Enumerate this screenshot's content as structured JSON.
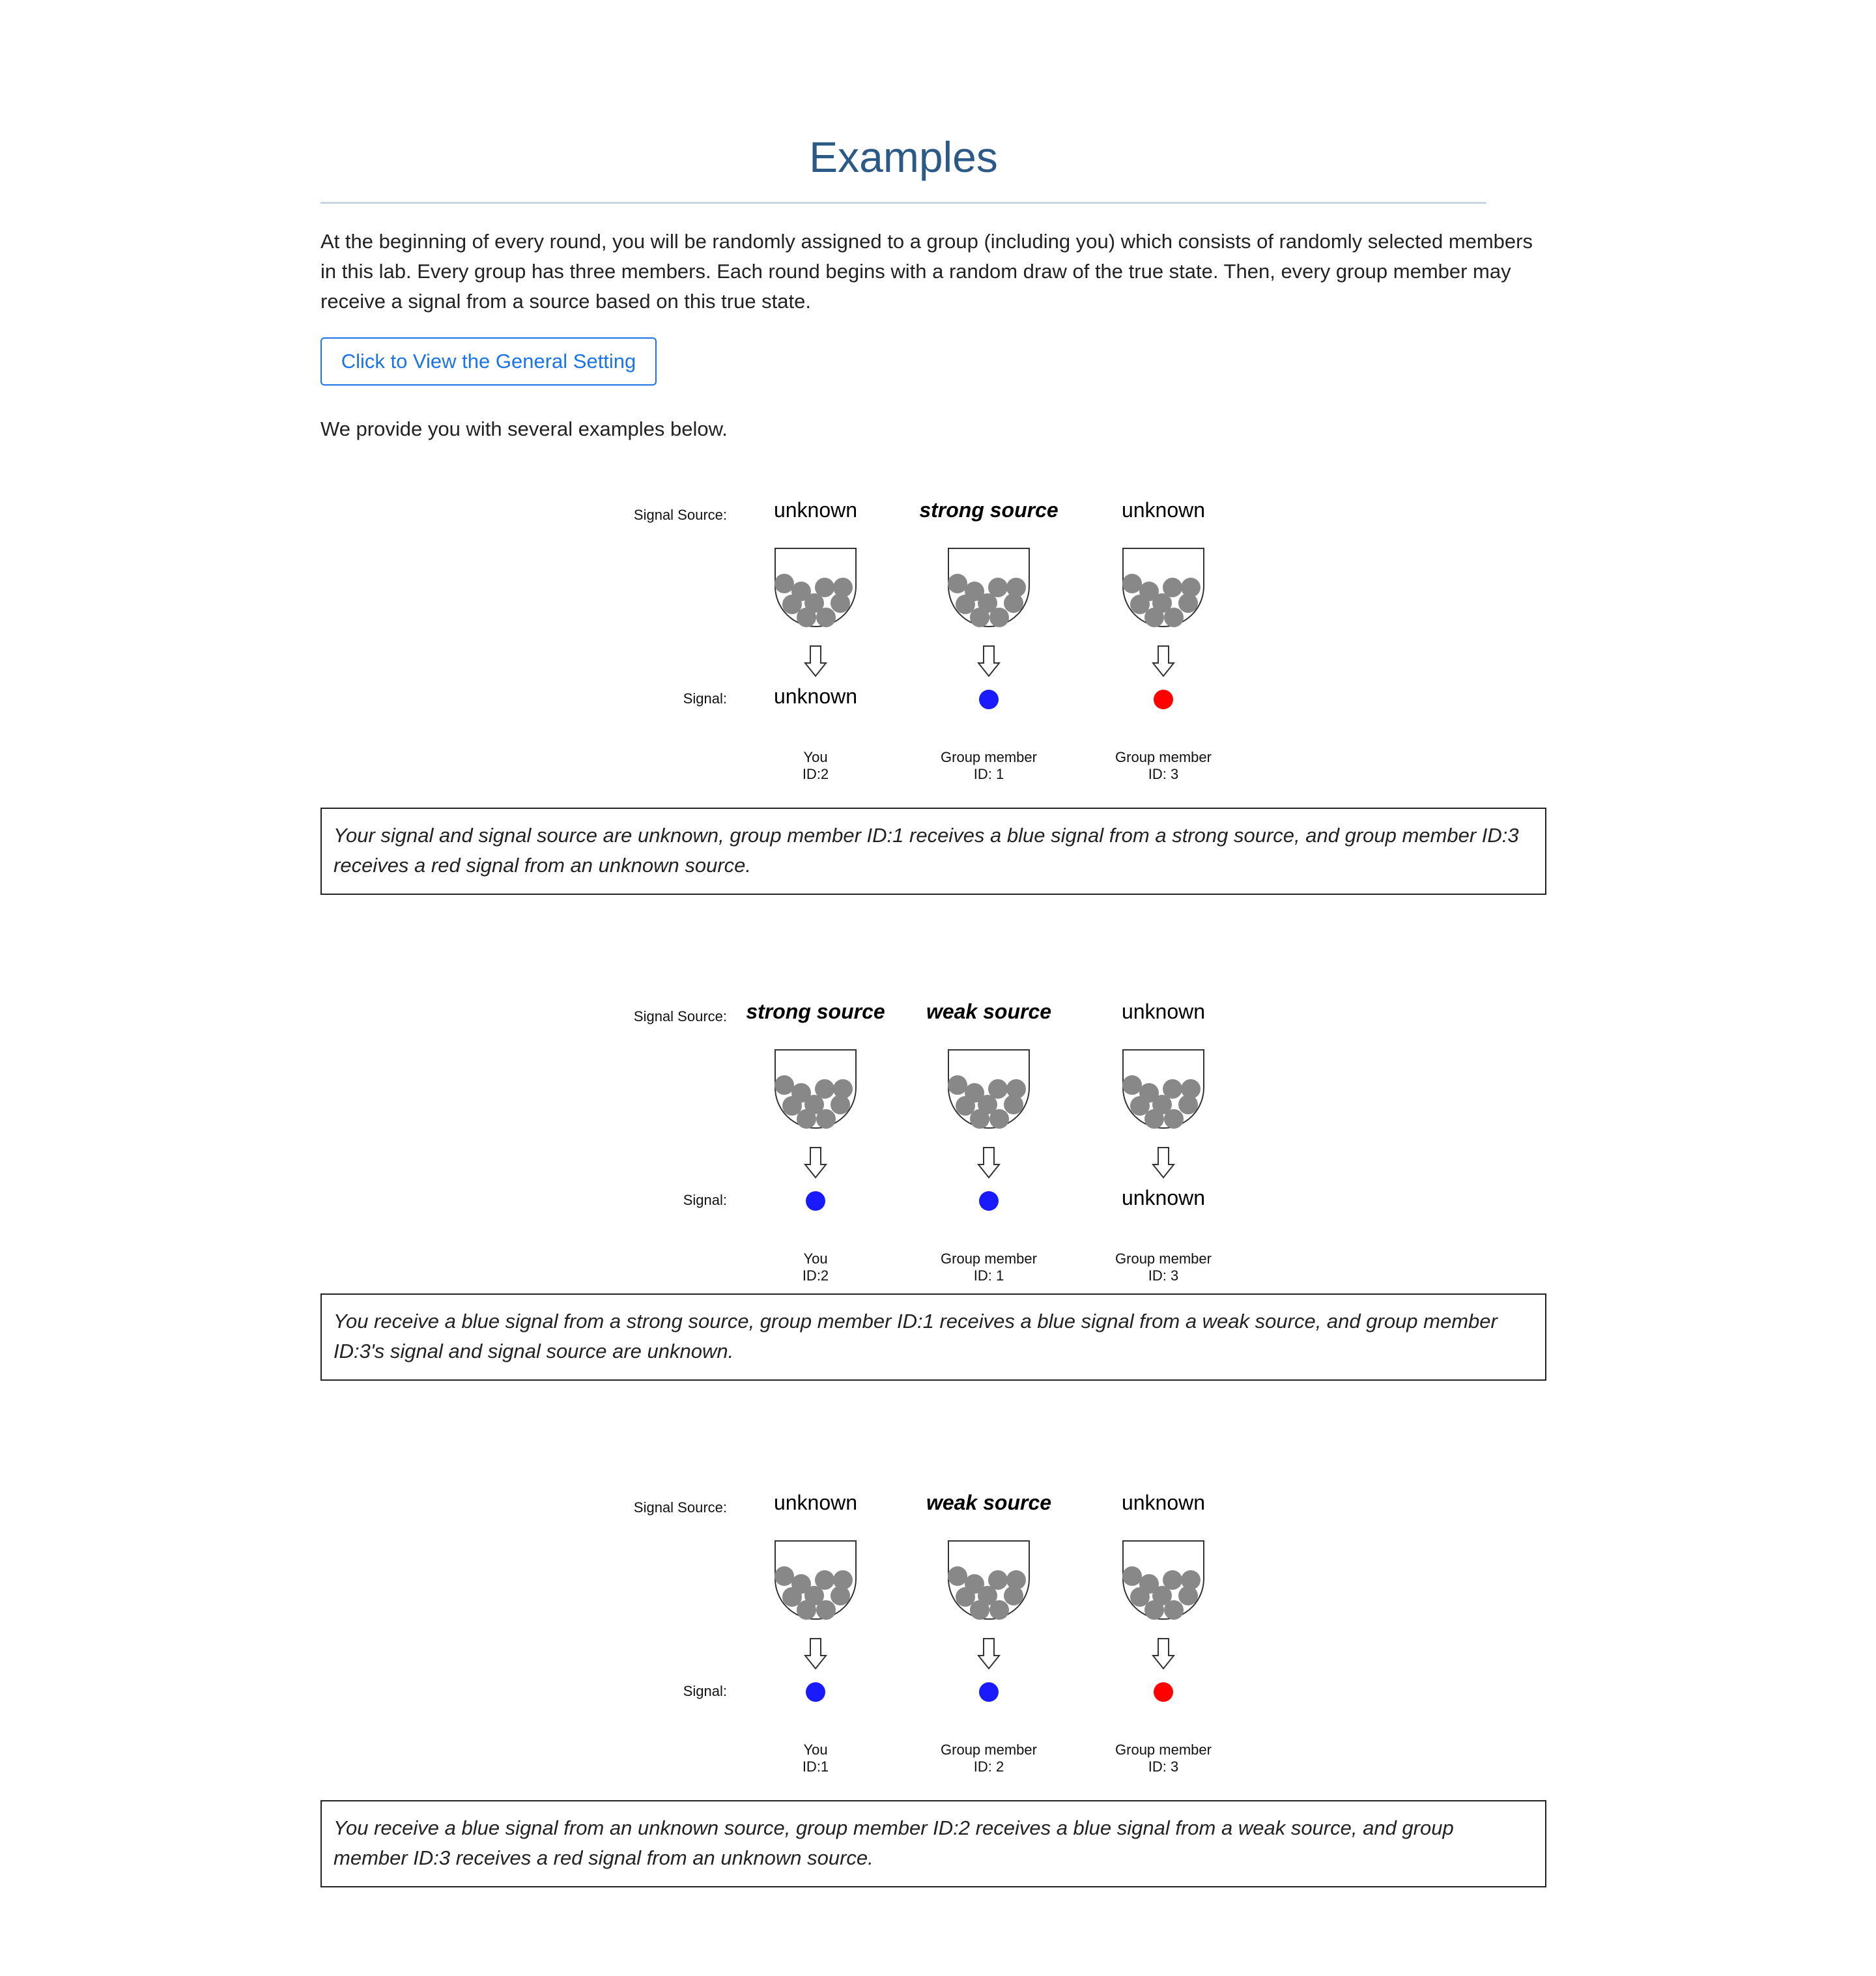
{
  "page": {
    "title": "Examples",
    "intro": "At the beginning of every round, you will be randomly assigned to a group (including you) which consists of randomly selected members in this lab. Every group has three members. Each round begins with a random draw of the true state. Then, every group member may receive a signal from a source based on this true state.",
    "view_button_label": "Click to View the General Setting",
    "examples_lead": "We provide you with several examples below."
  },
  "labels": {
    "signal_source": "Signal Source:",
    "signal": "Signal:"
  },
  "colors": {
    "title": "#2c5a86",
    "button": "#1a73e8",
    "ball": "#888888",
    "blue_signal": "#1a1aff",
    "red_signal": "#ff0000"
  },
  "examples": [
    {
      "members": [
        {
          "source": "unknown",
          "source_style": "plain",
          "signal": "unknown",
          "label_line1": "You",
          "label_line2": "ID:2"
        },
        {
          "source": "strong source",
          "source_style": "bold-italic",
          "signal": "blue",
          "label_line1": "Group member",
          "label_line2": "ID: 1"
        },
        {
          "source": "unknown",
          "source_style": "plain",
          "signal": "red",
          "label_line1": "Group member",
          "label_line2": "ID: 3"
        }
      ],
      "caption": "Your signal and signal source are unknown, group member ID:1 receives a blue signal from a strong source, and group member ID:3 receives a red signal from an unknown source."
    },
    {
      "members": [
        {
          "source": "strong source",
          "source_style": "bold-italic",
          "signal": "blue",
          "label_line1": "You",
          "label_line2": "ID:2"
        },
        {
          "source": "weak source",
          "source_style": "bold-italic",
          "signal": "blue",
          "label_line1": "Group member",
          "label_line2": "ID: 1"
        },
        {
          "source": "unknown",
          "source_style": "plain",
          "signal": "unknown",
          "label_line1": "Group member",
          "label_line2": "ID: 3"
        }
      ],
      "caption": "You receive a blue signal from a strong source, group member ID:1 receives a blue signal from a weak source, and group member ID:3's signal and signal source are unknown."
    },
    {
      "members": [
        {
          "source": "unknown",
          "source_style": "plain",
          "signal": "blue",
          "label_line1": "You",
          "label_line2": "ID:1"
        },
        {
          "source": "weak source",
          "source_style": "bold-italic",
          "signal": "blue",
          "label_line1": "Group member",
          "label_line2": "ID: 2"
        },
        {
          "source": "unknown",
          "source_style": "plain",
          "signal": "red",
          "label_line1": "Group member",
          "label_line2": "ID: 3"
        }
      ],
      "caption": "You receive a blue signal from an unknown source, group member ID:2 receives a blue signal from a weak source, and group member ID:3 receives a red signal from an unknown source."
    }
  ]
}
